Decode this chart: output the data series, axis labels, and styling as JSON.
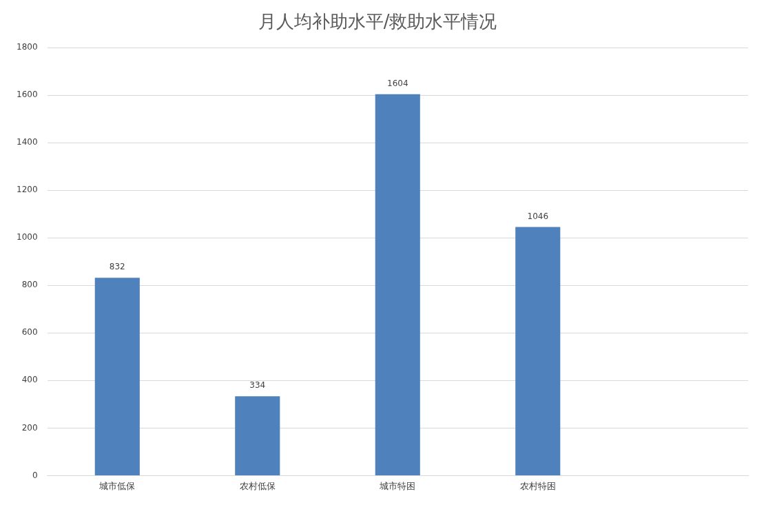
{
  "chart_data": {
    "type": "bar",
    "title": "月人均补助水平/救助水平情况",
    "categories": [
      "城市低保",
      "农村低保",
      "城市特困",
      "农村特困",
      null
    ],
    "values": [
      832,
      334,
      1604,
      1046,
      null
    ],
    "color": "#4f81bd",
    "ylim": [
      0,
      1800
    ],
    "yticks": [
      0,
      200,
      400,
      600,
      800,
      1000,
      1200,
      1400,
      1600,
      1800
    ],
    "grid": "y",
    "legend": false,
    "data_labels": true
  }
}
